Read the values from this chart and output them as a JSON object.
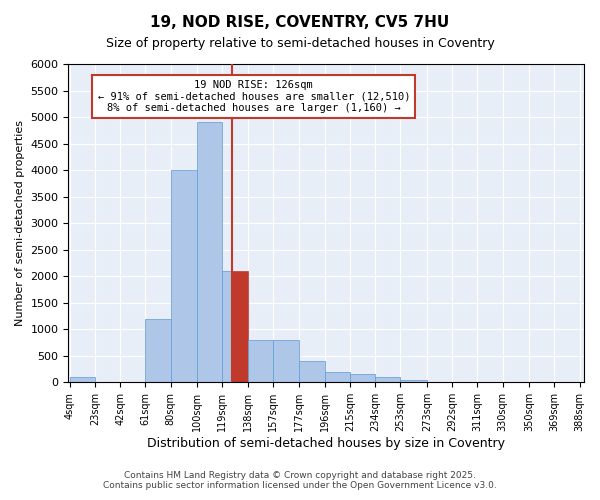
{
  "title": "19, NOD RISE, COVENTRY, CV5 7HU",
  "subtitle": "Size of property relative to semi-detached houses in Coventry",
  "xlabel": "Distribution of semi-detached houses by size in Coventry",
  "ylabel": "Number of semi-detached properties",
  "footer1": "Contains HM Land Registry data © Crown copyright and database right 2025.",
  "footer2": "Contains public sector information licensed under the Open Government Licence v3.0.",
  "annotation_title": "19 NOD RISE: 126sqm",
  "annotation_line1": "← 91% of semi-detached houses are smaller (12,510)",
  "annotation_line2": "8% of semi-detached houses are larger (1,160) →",
  "property_size": 126,
  "bin_edges": [
    4,
    23,
    42,
    61,
    80,
    100,
    119,
    138,
    157,
    177,
    196,
    215,
    234,
    253,
    273,
    292,
    311,
    330,
    350,
    369,
    388
  ],
  "bin_counts": [
    100,
    0,
    0,
    1200,
    4000,
    4900,
    2100,
    800,
    800,
    400,
    200,
    150,
    100,
    50,
    0,
    0,
    0,
    0,
    0,
    0
  ],
  "bar_color": "#AEC6E8",
  "bar_edge_color": "#5B9BD5",
  "red_bar_color": "#C0392B",
  "vline_color": "#C0392B",
  "annotation_box_color": "#C0392B",
  "background_color": "#E8EEF7",
  "grid_color": "#FFFFFF",
  "ylim": [
    0,
    6000
  ],
  "yticks": [
    0,
    500,
    1000,
    1500,
    2000,
    2500,
    3000,
    3500,
    4000,
    4500,
    5000,
    5500,
    6000
  ]
}
